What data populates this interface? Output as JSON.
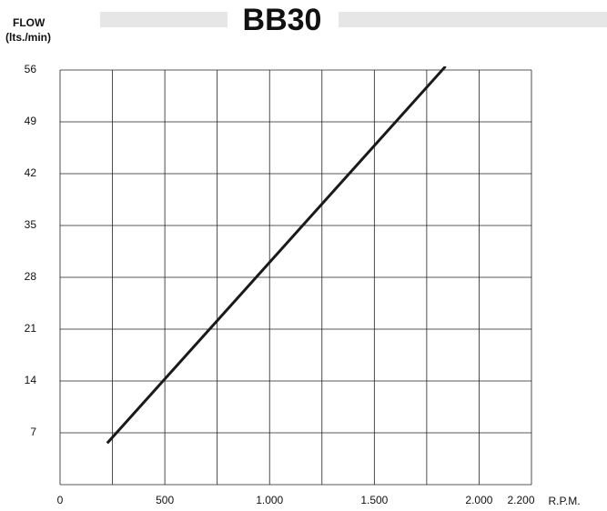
{
  "chart_data": {
    "type": "line",
    "title": "BB30",
    "y_label": "FLOW",
    "y_unit": "(lts./min)",
    "x_label": "R.P.M.",
    "x": [
      225,
      1840
    ],
    "series": [
      {
        "name": null,
        "color": "#1a1a1a",
        "values": [
          5.6,
          56.5
        ]
      }
    ],
    "xlim": [
      0,
      2250
    ],
    "ylim": [
      0,
      56
    ],
    "xticks": [
      0,
      500,
      {
        "value": 1000,
        "label": "1.000"
      },
      {
        "value": 1500,
        "label": "1.500"
      },
      {
        "value": 2000,
        "label": "2.000"
      },
      {
        "value": 2200,
        "label": "2.200"
      }
    ],
    "x_gridlines": [
      250,
      500,
      750,
      1000,
      1250,
      1500,
      1750,
      2000,
      2250
    ],
    "yticks": [
      7,
      14,
      21,
      28,
      35,
      42,
      49,
      56
    ],
    "grid": true
  }
}
